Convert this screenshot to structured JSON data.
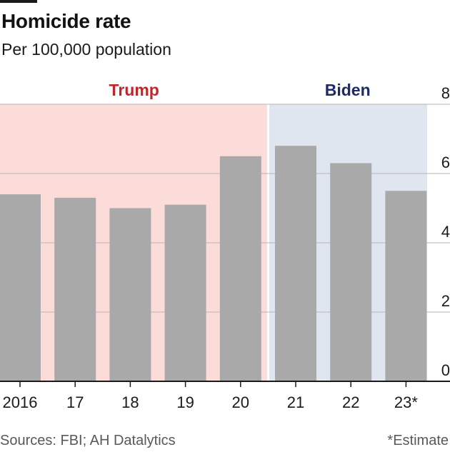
{
  "header": {
    "title": "Homicide rate",
    "subtitle": "Per 100,000 population"
  },
  "footer": {
    "sources": "Sources: FBI; AH Datalytics",
    "note": "*Estimate"
  },
  "colors": {
    "bar": "#a9a9a9",
    "trump_band": "#fcdcd8",
    "biden_band": "#e0e6f0",
    "trump_label": "#c0262d",
    "biden_label": "#1f2a66",
    "gridline": "#b4b4b4",
    "axis_text": "#1a1a1a"
  },
  "chart_data": {
    "type": "bar",
    "title": "Homicide rate",
    "subtitle": "Per 100,000 population",
    "categories": [
      "2016",
      "17",
      "18",
      "19",
      "20",
      "21",
      "22",
      "23*"
    ],
    "values": [
      5.4,
      5.3,
      5.0,
      5.1,
      6.5,
      6.8,
      6.3,
      5.5
    ],
    "ylim": [
      0,
      8
    ],
    "yticks": [
      0,
      2,
      4,
      6,
      8
    ],
    "yaxis_position": "right",
    "grid": true,
    "bands": [
      {
        "label": "Trump",
        "from": "2016",
        "to": "20"
      },
      {
        "label": "Biden",
        "from": "21",
        "to": "23*"
      }
    ]
  }
}
